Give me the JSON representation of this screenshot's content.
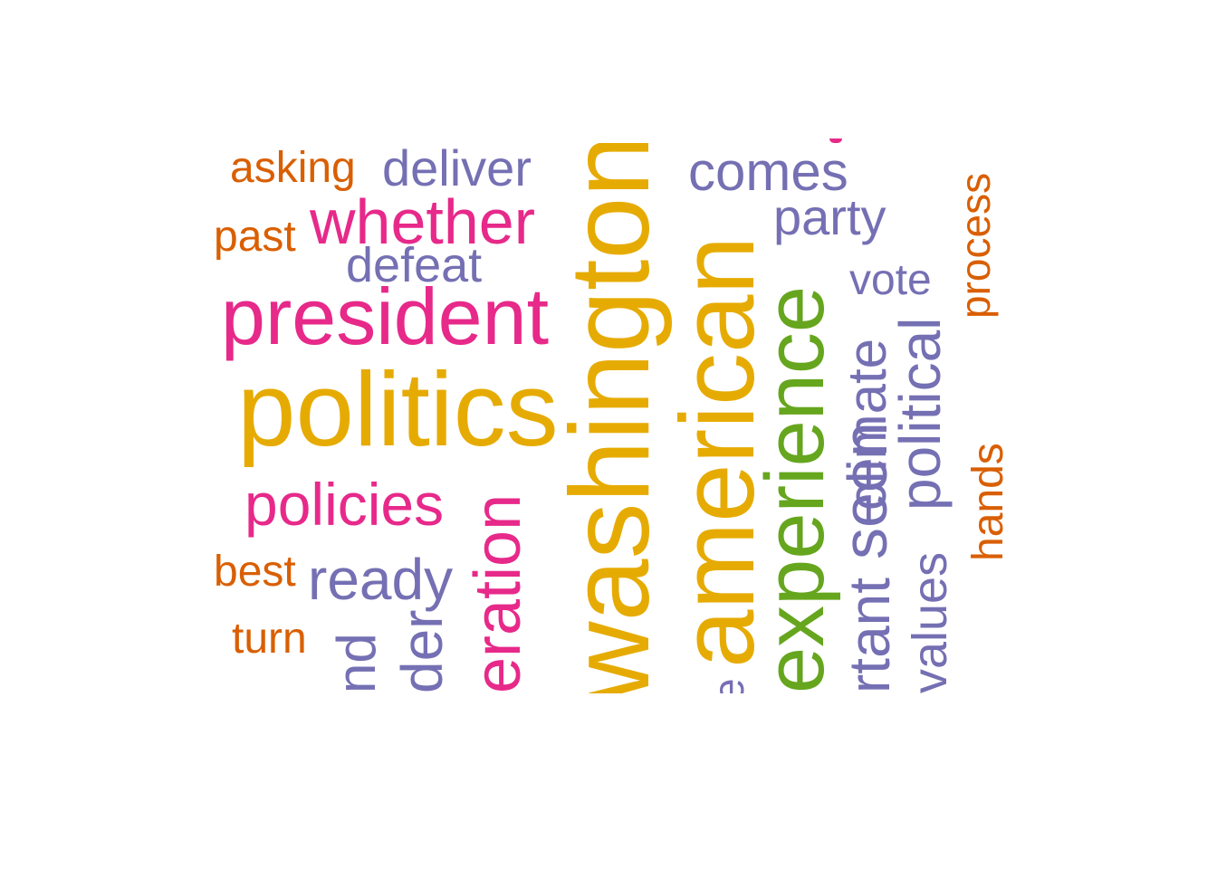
{
  "colors": {
    "orange": "#d95f02",
    "purple": "#7570b3",
    "pink": "#e7298a",
    "gold": "#e6ab02",
    "green": "#66a61e"
  },
  "words": {
    "asking": "asking",
    "deliver": "deliver",
    "comes": "comes",
    "past": "past",
    "whether": "whether",
    "party": "party",
    "defeat": "defeat",
    "vote": "vote",
    "process": "process",
    "president": "president",
    "politics": "politics",
    "policies": "policies",
    "best": "best",
    "ready": "ready",
    "turn": "turn",
    "washington": "washington",
    "american": "american",
    "experience": "experience",
    "climate": "climate",
    "political": "political",
    "seen": "seen",
    "hands": "hands",
    "eration": "eration",
    "der": "der",
    "nd": "nd",
    "rtant": "rtant",
    "values": "values",
    "e_fragment": "e"
  }
}
